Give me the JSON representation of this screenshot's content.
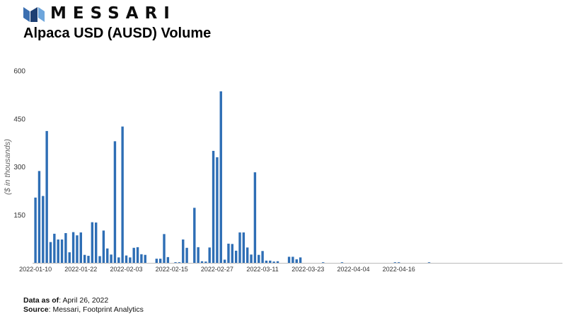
{
  "brand": {
    "name": "MESSARI",
    "colors": {
      "dark": "#1e3f72",
      "mid": "#3b6fb0",
      "light": "#6ea6dc"
    }
  },
  "chart_data": {
    "type": "bar",
    "title": "Alpaca USD (AUSD) Volume",
    "xlabel": "",
    "ylabel": "($ in thousands)",
    "ylim": [
      0,
      600
    ],
    "yticks": [
      600,
      450,
      300,
      150
    ],
    "grid": false,
    "bar_color": "#2e6eb5",
    "x_tick_labels": [
      "2022-01-10",
      "2022-01-22",
      "2022-02-03",
      "2022-02-15",
      "2022-02-27",
      "2022-03-11",
      "2022-03-23",
      "2022-04-04",
      "2022-04-16"
    ],
    "categories": [
      "2022-01-10",
      "2022-01-11",
      "2022-01-12",
      "2022-01-13",
      "2022-01-14",
      "2022-01-15",
      "2022-01-16",
      "2022-01-17",
      "2022-01-18",
      "2022-01-19",
      "2022-01-20",
      "2022-01-21",
      "2022-01-22",
      "2022-01-23",
      "2022-01-24",
      "2022-01-25",
      "2022-01-26",
      "2022-01-27",
      "2022-01-28",
      "2022-01-29",
      "2022-01-30",
      "2022-01-31",
      "2022-02-01",
      "2022-02-02",
      "2022-02-03",
      "2022-02-04",
      "2022-02-05",
      "2022-02-06",
      "2022-02-07",
      "2022-02-08",
      "2022-02-09",
      "2022-02-10",
      "2022-02-11",
      "2022-02-12",
      "2022-02-13",
      "2022-02-14",
      "2022-02-15",
      "2022-02-16",
      "2022-02-17",
      "2022-02-18",
      "2022-02-19",
      "2022-02-20",
      "2022-02-21",
      "2022-02-22",
      "2022-02-23",
      "2022-02-24",
      "2022-02-25",
      "2022-02-26",
      "2022-02-27",
      "2022-02-28",
      "2022-03-01",
      "2022-03-02",
      "2022-03-03",
      "2022-03-04",
      "2022-03-05",
      "2022-03-06",
      "2022-03-07",
      "2022-03-08",
      "2022-03-09",
      "2022-03-10",
      "2022-03-11",
      "2022-03-12",
      "2022-03-13",
      "2022-03-14",
      "2022-03-15",
      "2022-03-16",
      "2022-03-17",
      "2022-03-18",
      "2022-03-19",
      "2022-03-20",
      "2022-03-21",
      "2022-03-22",
      "2022-03-23",
      "2022-03-24",
      "2022-03-25",
      "2022-03-26",
      "2022-03-27",
      "2022-03-28",
      "2022-03-29",
      "2022-03-30",
      "2022-03-31",
      "2022-04-01",
      "2022-04-02",
      "2022-04-03",
      "2022-04-04",
      "2022-04-05",
      "2022-04-06",
      "2022-04-07",
      "2022-04-08",
      "2022-04-09",
      "2022-04-10",
      "2022-04-11",
      "2022-04-12",
      "2022-04-13",
      "2022-04-14",
      "2022-04-15",
      "2022-04-16",
      "2022-04-17",
      "2022-04-18",
      "2022-04-19",
      "2022-04-20",
      "2022-04-21",
      "2022-04-22",
      "2022-04-23",
      "2022-04-24",
      "2022-04-25"
    ],
    "values": [
      204,
      287,
      209,
      412,
      65,
      91,
      73,
      73,
      93,
      33,
      96,
      86,
      95,
      25,
      22,
      127,
      126,
      21,
      101,
      45,
      26,
      380,
      17,
      426,
      23,
      17,
      47,
      49,
      27,
      25,
      0,
      0,
      13,
      13,
      90,
      18,
      0,
      2,
      2,
      73,
      47,
      0,
      172,
      49,
      5,
      4,
      48,
      350,
      330,
      536,
      10,
      60,
      59,
      38,
      95,
      95,
      48,
      26,
      283,
      25,
      37,
      7,
      7,
      4,
      5,
      0,
      0,
      19,
      19,
      11,
      17,
      0,
      0,
      0,
      0,
      0,
      1,
      0,
      0,
      0,
      0,
      1,
      0,
      0,
      0,
      0,
      0,
      0,
      0,
      0,
      0,
      0,
      0,
      0,
      0,
      1,
      1,
      0,
      0,
      0,
      0,
      0,
      0,
      0,
      1,
      0
    ]
  },
  "footer": {
    "as_of_label": "Data as of",
    "as_of_value": ": April 26, 2022",
    "source_label": "Source",
    "source_value": ": Messari, Footprint Analytics"
  }
}
